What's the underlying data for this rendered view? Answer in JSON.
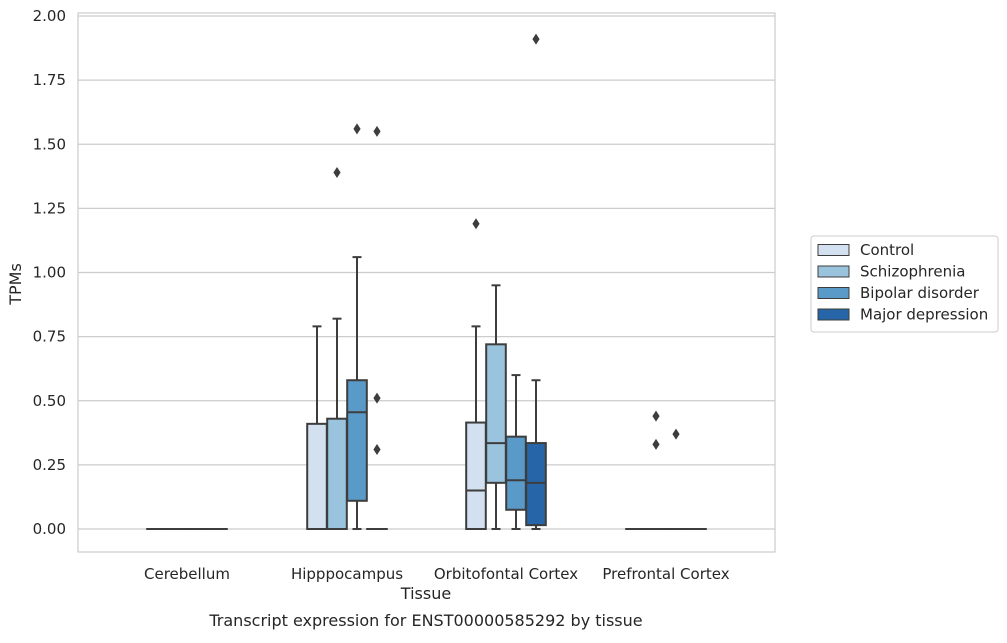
{
  "chart_data": {
    "type": "box",
    "title": "Transcript expression for ENST00000585292 by tissue",
    "xlabel": "Tissue",
    "ylabel": "TPMs",
    "ylim": [
      -0.09,
      2.01
    ],
    "yticks": [
      "0.00",
      "0.25",
      "0.50",
      "0.75",
      "1.00",
      "1.25",
      "1.50",
      "1.75",
      "2.00"
    ],
    "categories": [
      "Cerebellum",
      "Hipppocampus",
      "Orbitofontal Cortex",
      "Prefrontal Cortex"
    ],
    "grid": "horizontal",
    "legend_position": "right",
    "series": [
      {
        "name": "Control",
        "color": "#d2e0f0",
        "boxes": [
          {
            "category": "Cerebellum",
            "min": 0,
            "q1": 0,
            "median": 0,
            "q3": 0,
            "max": 0,
            "outliers": []
          },
          {
            "category": "Hipppocampus",
            "min": 0,
            "q1": 0,
            "median": 0,
            "q3": 0.41,
            "max": 0.79,
            "outliers": []
          },
          {
            "category": "Orbitofontal Cortex",
            "min": 0,
            "q1": 0,
            "median": 0.15,
            "q3": 0.415,
            "max": 0.79,
            "outliers": [
              1.19
            ]
          },
          {
            "category": "Prefrontal Cortex",
            "min": 0,
            "q1": 0,
            "median": 0,
            "q3": 0,
            "max": 0,
            "outliers": []
          }
        ]
      },
      {
        "name": "Schizophrenia",
        "color": "#9ac3de",
        "boxes": [
          {
            "category": "Cerebellum",
            "min": 0,
            "q1": 0,
            "median": 0,
            "q3": 0,
            "max": 0,
            "outliers": []
          },
          {
            "category": "Hipppocampus",
            "min": 0,
            "q1": 0,
            "median": 0,
            "q3": 0.43,
            "max": 0.82,
            "outliers": [
              1.39
            ]
          },
          {
            "category": "Orbitofontal Cortex",
            "min": 0,
            "q1": 0.18,
            "median": 0.335,
            "q3": 0.72,
            "max": 0.95,
            "outliers": []
          },
          {
            "category": "Prefrontal Cortex",
            "min": 0,
            "q1": 0,
            "median": 0,
            "q3": 0,
            "max": 0,
            "outliers": [
              0.44,
              0.33
            ]
          }
        ]
      },
      {
        "name": "Bipolar disorder",
        "color": "#5a9ac8",
        "boxes": [
          {
            "category": "Cerebellum",
            "min": 0,
            "q1": 0,
            "median": 0,
            "q3": 0,
            "max": 0,
            "outliers": []
          },
          {
            "category": "Hipppocampus",
            "min": 0,
            "q1": 0.11,
            "median": 0.455,
            "q3": 0.58,
            "max": 1.06,
            "outliers": [
              1.56
            ]
          },
          {
            "category": "Orbitofontal Cortex",
            "min": 0,
            "q1": 0.075,
            "median": 0.19,
            "q3": 0.36,
            "max": 0.6,
            "outliers": []
          },
          {
            "category": "Prefrontal Cortex",
            "min": 0,
            "q1": 0,
            "median": 0,
            "q3": 0,
            "max": 0,
            "outliers": [
              0.37
            ]
          }
        ]
      },
      {
        "name": "Major depression",
        "color": "#2666a8",
        "boxes": [
          {
            "category": "Cerebellum",
            "min": 0,
            "q1": 0,
            "median": 0,
            "q3": 0,
            "max": 0,
            "outliers": []
          },
          {
            "category": "Hipppocampus",
            "min": 0,
            "q1": 0,
            "median": 0,
            "q3": 0,
            "max": 0,
            "outliers": [
              1.55,
              0.51,
              0.31
            ]
          },
          {
            "category": "Orbitofontal Cortex",
            "min": 0,
            "q1": 0.015,
            "median": 0.18,
            "q3": 0.335,
            "max": 0.58,
            "outliers": [
              1.91
            ]
          },
          {
            "category": "Prefrontal Cortex",
            "min": 0,
            "q1": 0,
            "median": 0,
            "q3": 0,
            "max": 0,
            "outliers": []
          }
        ]
      }
    ]
  }
}
